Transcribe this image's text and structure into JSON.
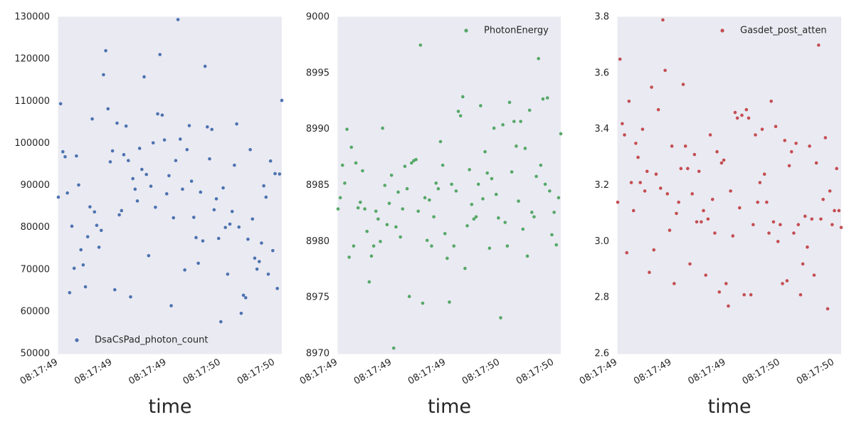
{
  "chart_data": [
    {
      "type": "scatter",
      "xlabel": "time",
      "x_tick_labels": [
        "08:17:49",
        "08:17:49",
        "08:17:49",
        "08:17:50",
        "08:17:50"
      ],
      "ylim": [
        50000,
        130000
      ],
      "y_ticks": [
        50000,
        60000,
        70000,
        80000,
        90000,
        100000,
        110000,
        120000,
        130000
      ],
      "y_tick_labels": [
        "50000",
        "60000",
        "70000",
        "80000",
        "90000",
        "100000",
        "110000",
        "120000",
        "130000"
      ],
      "legend_placement": "lower-left",
      "grid": true,
      "series": [
        {
          "name": "DsaCsPad_photon_count",
          "color": "#4c72b0",
          "values": [
            87200,
            109400,
            98000,
            96800,
            88200,
            64500,
            80300,
            70300,
            97000,
            90100,
            74700,
            71100,
            65900,
            77800,
            84900,
            105800,
            83700,
            80500,
            75300,
            79300,
            116300,
            122000,
            108200,
            95600,
            98200,
            65200,
            104800,
            83000,
            84000,
            97300,
            104100,
            95900,
            63500,
            91600,
            89100,
            86300,
            98800,
            93800,
            115800,
            92600,
            73300,
            89800,
            100100,
            84800,
            107000,
            121100,
            106700,
            100800,
            88000,
            92300,
            61400,
            82300,
            95900,
            129400,
            101000,
            89100,
            69900,
            98500,
            104200,
            91000,
            82400,
            77600,
            71500,
            88400,
            76800,
            118300,
            103900,
            96300,
            103300,
            84200,
            86800,
            77400,
            57600,
            89400,
            80000,
            68900,
            80800,
            83800,
            94800,
            104600,
            80100,
            59600,
            63900,
            63300,
            77200,
            98500,
            82000,
            72700,
            70100,
            71900,
            76300,
            89900,
            87200,
            68900,
            95800,
            74500,
            92800,
            65500,
            92700,
            110200
          ]
        }
      ]
    },
    {
      "type": "scatter",
      "xlabel": "time",
      "x_tick_labels": [
        "08:17:49",
        "08:17:49",
        "08:17:49",
        "08:17:50",
        "08:17:50"
      ],
      "ylim": [
        8970,
        9000
      ],
      "y_ticks": [
        8970,
        8975,
        8980,
        8985,
        8990,
        8995,
        9000
      ],
      "y_tick_labels": [
        "8970",
        "8975",
        "8980",
        "8985",
        "8990",
        "8995",
        "9000"
      ],
      "legend_placement": "top-right",
      "grid": true,
      "series": [
        {
          "name": "PhotonEnergy",
          "color": "#55a868",
          "values": [
            8982.9,
            8983.9,
            8986.8,
            8985.2,
            8990,
            8978.6,
            8988.4,
            8979.6,
            8987,
            8983,
            8983.5,
            8986.3,
            8982.9,
            8980.9,
            8976.4,
            8978.7,
            8979.6,
            8982.7,
            8982,
            8980,
            8990.1,
            8985,
            8981.5,
            8983.4,
            8985.9,
            8970.5,
            8981.3,
            8984.4,
            8980.4,
            8982.9,
            8986.7,
            8984.7,
            8975.1,
            8987,
            8987.2,
            8987.3,
            8982.7,
            8997.5,
            8974.5,
            8983.9,
            8980.1,
            8983.7,
            8979.6,
            8982.2,
            8985.2,
            8984.7,
            8988.9,
            8986.8,
            8980.7,
            8978.5,
            8974.6,
            8985.1,
            8979.6,
            8984.5,
            8991.6,
            8991.2,
            8992.9,
            8977.6,
            8981.4,
            8986.4,
            8983.3,
            8982,
            8982.2,
            8985.1,
            8992.1,
            8983.8,
            8988,
            8986.1,
            8979.4,
            8985.6,
            8990.1,
            8984.2,
            8982.1,
            8973.2,
            8990.4,
            8981.7,
            8979.6,
            8992.4,
            8986.2,
            8990.7,
            8988.5,
            8983.6,
            8990.7,
            8981.1,
            8988.3,
            8978.7,
            8991.7,
            8982.6,
            8982.2,
            8985.8,
            8996.3,
            8986.8,
            8992.7,
            8985.1,
            8992.8,
            8984.5,
            8980.6,
            8982.6,
            8979.7,
            8983.9,
            8989.6
          ]
        }
      ]
    },
    {
      "type": "scatter",
      "xlabel": "time",
      "x_tick_labels": [
        "08:17:49",
        "08:17:49",
        "08:17:49",
        "08:17:50",
        "08:17:50"
      ],
      "ylim": [
        2.6,
        3.8
      ],
      "y_ticks": [
        2.6,
        2.8,
        3.0,
        3.2,
        3.4,
        3.6,
        3.8
      ],
      "y_tick_labels": [
        "2.6",
        "2.8",
        "3.0",
        "3.2",
        "3.4",
        "3.6",
        "3.8"
      ],
      "legend_placement": "top-right",
      "grid": true,
      "series": [
        {
          "name": "Gasdet_post_atten",
          "color": "#c44e52",
          "values": [
            3.14,
            3.65,
            3.42,
            3.38,
            2.96,
            3.5,
            3.21,
            3.11,
            3.35,
            3.3,
            3.21,
            3.4,
            3.18,
            3.25,
            2.89,
            3.55,
            2.97,
            3.24,
            3.47,
            3.19,
            3.79,
            3.61,
            3.17,
            3.04,
            3.34,
            2.85,
            3.1,
            3.14,
            3.26,
            3.56,
            3.34,
            3.26,
            2.92,
            3.17,
            3.31,
            3.07,
            3.25,
            3.07,
            3.11,
            2.88,
            3.08,
            3.38,
            3.15,
            3.03,
            3.32,
            2.82,
            3.28,
            3.29,
            2.85,
            2.77,
            3.18,
            3.02,
            3.46,
            3.44,
            3.12,
            3.45,
            2.81,
            3.47,
            3.44,
            2.81,
            3.06,
            3.38,
            3.14,
            3.21,
            3.4,
            3.24,
            3.14,
            3.03,
            3.5,
            3.07,
            3.41,
            3.0,
            3.06,
            2.85,
            3.36,
            2.86,
            3.27,
            3.32,
            3.03,
            3.35,
            3.06,
            2.81,
            2.92,
            3.09,
            2.98,
            3.34,
            3.08,
            2.88,
            3.28,
            3.7,
            3.08,
            3.15,
            3.37,
            2.76,
            3.18,
            3.06,
            3.11,
            3.26,
            3.11,
            3.05
          ]
        }
      ]
    }
  ]
}
